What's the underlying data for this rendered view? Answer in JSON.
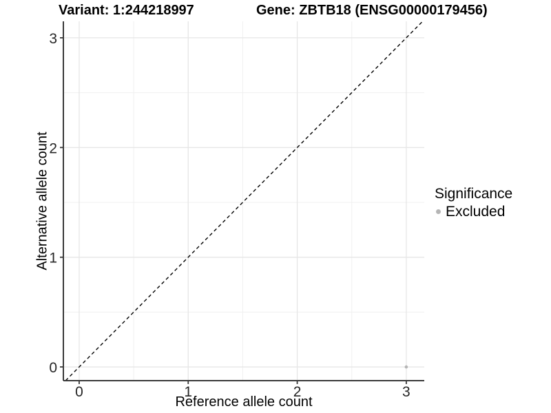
{
  "figure": {
    "header": {
      "variant_title": "Variant: 1:244218997",
      "gene_title": "Gene: ZBTB18 (ENSG00000179456)"
    },
    "axes": {
      "x_title": "Reference allele count",
      "y_title": "Alternative allele count"
    },
    "legend": {
      "title": "Significance",
      "items": [
        {
          "label": "Excluded",
          "color": "#b5b5b5"
        }
      ]
    }
  },
  "chart_data": {
    "type": "scatter",
    "title": "Variant: 1:244218997   |   Gene: ZBTB18 (ENSG00000179456)",
    "xlabel": "Reference allele count",
    "ylabel": "Alternative allele count",
    "xlim": [
      -0.145,
      3.165
    ],
    "ylim": [
      -0.125,
      3.15
    ],
    "x_ticks": [
      "0",
      "1",
      "2",
      "3"
    ],
    "x_tick_values": [
      0,
      1,
      2,
      3
    ],
    "y_ticks": [
      "0",
      "1",
      "2",
      "3"
    ],
    "y_tick_values": [
      0,
      1,
      2,
      3
    ],
    "x_minor_ticks": [
      0.5,
      1.5,
      2.5
    ],
    "y_minor_ticks": [
      0.5,
      1.5,
      2.5
    ],
    "grid": "on",
    "legend_position": "right",
    "series": [
      {
        "name": "Excluded",
        "color": "#b5b5b5",
        "points": [
          {
            "x": 3,
            "y": 0
          }
        ]
      }
    ],
    "reference_line": {
      "kind": "identity",
      "equation": "y = x",
      "style": "dashed",
      "color": "#000000"
    },
    "style": {
      "grid_major_color": "#e6e6e6",
      "grid_minor_color": "#f0f0f0",
      "axis_line_color": "#383838",
      "tick_label_color": "#262626",
      "point_radius": 2.3,
      "tick_label_font_size": 21
    }
  }
}
